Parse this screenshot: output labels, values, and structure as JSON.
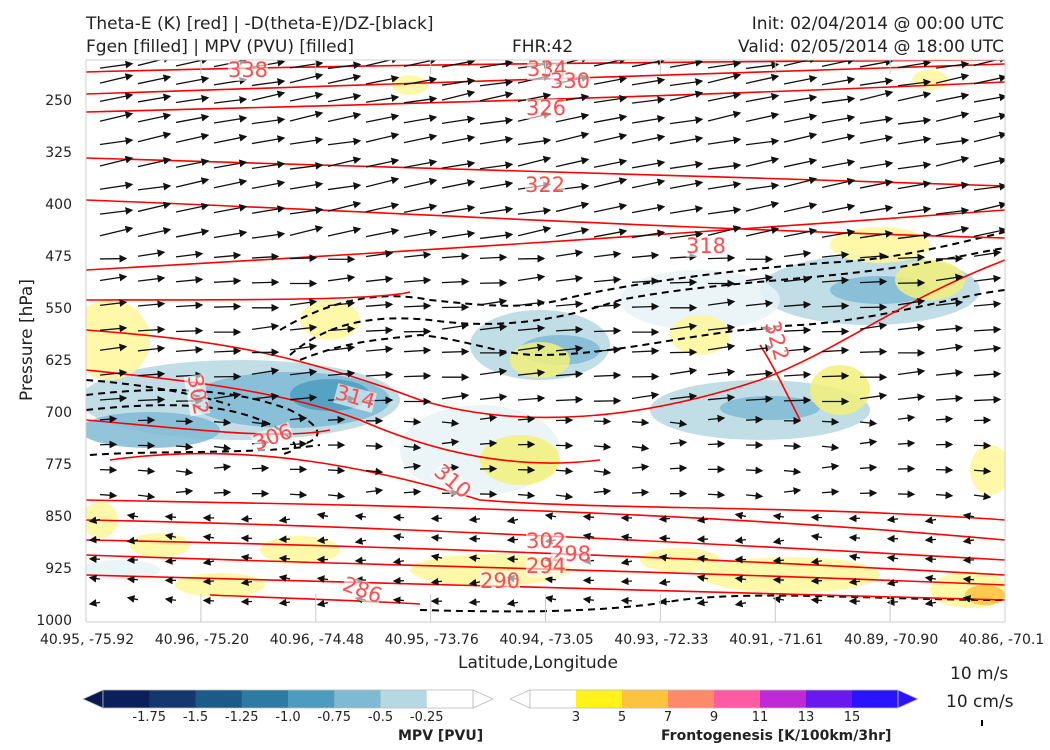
{
  "header": {
    "line1_left": "Theta-E (K) [red] | -D(theta-E)/DZ-[black]",
    "line2_left": "Fgen [filled] | MPV (PVU) [filled]",
    "fhr": "FHR:42",
    "init": "Init: 02/04/2014 @ 00:00 UTC",
    "valid": "Valid: 02/05/2014 @ 18:00 UTC"
  },
  "chart_data": {
    "type": "cross-section",
    "ylabel": "Pressure [hPa]",
    "xlabel": "Latitude,Longitude",
    "y_axis": {
      "scale": "inverted",
      "ylim": [
        1000,
        190
      ]
    },
    "y_ticks": [
      "250",
      "325",
      "400",
      "475",
      "550",
      "625",
      "700",
      "775",
      "850",
      "925",
      "1000"
    ],
    "x_ticks": [
      "40.95, -75.92",
      "40.96, -75.20",
      "40.96, -74.48",
      "40.95, -73.76",
      "40.94, -73.05",
      "40.93, -72.33",
      "40.91, -71.61",
      "40.89, -70.90",
      "40.86, -70.1"
    ],
    "theta_e_labels": [
      "338",
      "334",
      "330",
      "326",
      "322",
      "318",
      "322",
      "314",
      "302",
      "306",
      "310",
      "302",
      "298",
      "294",
      "290",
      "286"
    ],
    "colors": {
      "theta_e": "#ff0000",
      "dthetae_dz": "#000000",
      "wind": "#111111"
    },
    "mpv_colorbar": {
      "title": "MPV [PVU]",
      "ticks": [
        "-1.75",
        "-1.5",
        "-1.25",
        "-1.0",
        "-0.75",
        "-0.5",
        "-0.25"
      ],
      "colors": [
        "#0b1f5c",
        "#14386e",
        "#1c5a8a",
        "#2b7ba3",
        "#4c9cbf",
        "#7fbad3",
        "#b6d8e3",
        "#ffffff"
      ]
    },
    "fgen_colorbar": {
      "title": "Frontogenesis [K/100km/3hr]",
      "ticks": [
        "3",
        "5",
        "7",
        "9",
        "11",
        "13",
        "15"
      ],
      "colors": [
        "#ffffff",
        "#fff31a",
        "#ffc23d",
        "#ff8a6b",
        "#ff5aa2",
        "#c02ad6",
        "#6a18f0",
        "#2a14ff"
      ]
    },
    "wind_key": [
      "10 m/s",
      "10 cm/s"
    ]
  }
}
